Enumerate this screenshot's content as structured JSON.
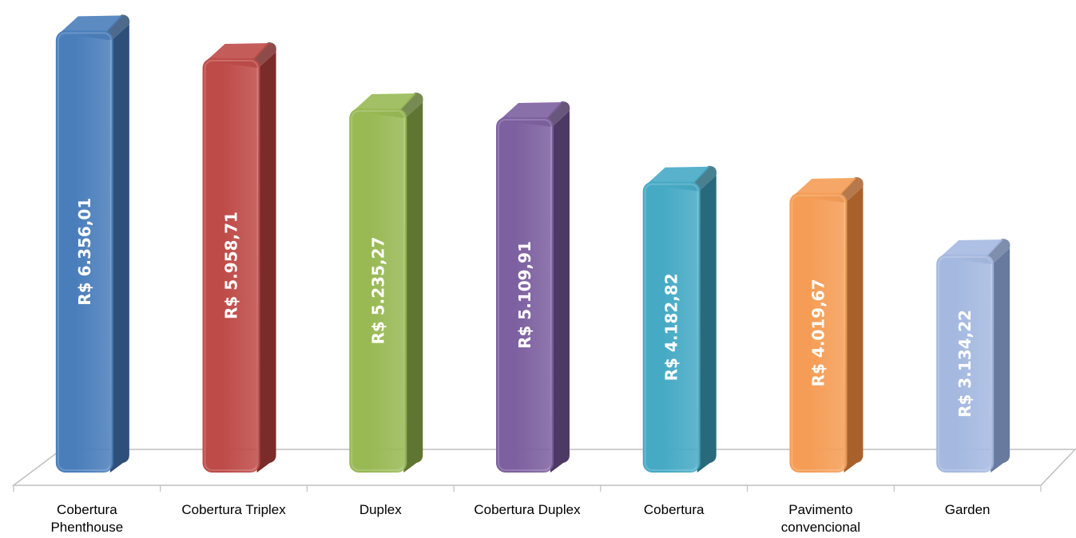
{
  "chart_data": {
    "type": "bar",
    "title": "",
    "xlabel": "",
    "ylabel": "",
    "ylim": [
      0,
      6500
    ],
    "grid": false,
    "legend": "none",
    "categories": [
      "Cobertura Phenthouse",
      "Cobertura Triplex",
      "Duplex",
      "Cobertura Duplex",
      "Cobertura",
      "Pavimento convencional",
      "Garden"
    ],
    "category_lines": [
      [
        "Cobertura",
        "Phenthouse"
      ],
      [
        "Cobertura Triplex"
      ],
      [
        "Duplex"
      ],
      [
        "Cobertura Duplex"
      ],
      [
        "Cobertura"
      ],
      [
        "Pavimento",
        "convencional"
      ],
      [
        "Garden"
      ]
    ],
    "values": [
      6356.01,
      5958.71,
      5235.27,
      5109.91,
      4182.82,
      4019.67,
      3134.22
    ],
    "value_labels": [
      "R$ 6.356,01",
      "R$ 5.958,71",
      "R$ 5.235,27",
      "R$ 5.109,91",
      "R$ 4.182,82",
      "R$ 4.019,67",
      "R$ 3.134,22"
    ],
    "colors": [
      {
        "front": "#4a7ebb",
        "side": "#2e4f78"
      },
      {
        "front": "#be4b48",
        "side": "#7a2c2a"
      },
      {
        "front": "#98b954",
        "side": "#5f7632"
      },
      {
        "front": "#7d60a0",
        "side": "#4d3a64"
      },
      {
        "front": "#46aac5",
        "side": "#286a7c"
      },
      {
        "front": "#f59d56",
        "side": "#a9612b"
      },
      {
        "front": "#a5b9e0",
        "side": "#687a9e"
      }
    ]
  }
}
